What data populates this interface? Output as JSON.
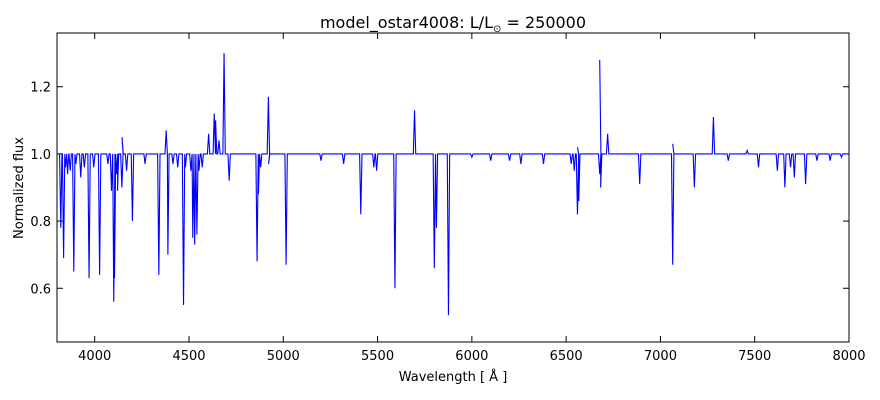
{
  "chart_data": {
    "type": "line",
    "title": "model_ostar4008: L/L",
    "title_subscript": "⊙",
    "title_suffix": " = 250000",
    "xlabel": "Wavelength [ Å ]",
    "ylabel": "Normalized flux",
    "xlim": [
      3800,
      8000
    ],
    "ylim": [
      0.44,
      1.36
    ],
    "xticks": [
      4000,
      4500,
      5000,
      5500,
      6000,
      6500,
      7000,
      7500,
      8000
    ],
    "yticks": [
      0.6,
      0.8,
      1.0,
      1.2
    ],
    "ytick_labels": [
      "0.6",
      "0.8",
      "1.0",
      "1.2"
    ],
    "grid": false,
    "series": [
      {
        "color": "#0000ff",
        "continuum": 1.0,
        "absorption_lines": [
          {
            "x": 3820,
            "y": 0.78
          },
          {
            "x": 3835,
            "y": 0.69
          },
          {
            "x": 3845,
            "y": 0.96
          },
          {
            "x": 3856,
            "y": 0.94
          },
          {
            "x": 3870,
            "y": 0.95
          },
          {
            "x": 3889,
            "y": 0.65
          },
          {
            "x": 3900,
            "y": 0.97
          },
          {
            "x": 3926,
            "y": 0.93
          },
          {
            "x": 3945,
            "y": 0.96
          },
          {
            "x": 3970,
            "y": 0.63
          },
          {
            "x": 3995,
            "y": 0.96
          },
          {
            "x": 4026,
            "y": 0.64
          },
          {
            "x": 4070,
            "y": 0.97
          },
          {
            "x": 4089,
            "y": 0.89
          },
          {
            "x": 4101,
            "y": 0.56
          },
          {
            "x": 4105,
            "y": 0.63
          },
          {
            "x": 4116,
            "y": 0.94
          },
          {
            "x": 4121,
            "y": 0.89
          },
          {
            "x": 4144,
            "y": 0.9
          },
          {
            "x": 4169,
            "y": 0.95
          },
          {
            "x": 4200,
            "y": 0.8
          },
          {
            "x": 4267,
            "y": 0.97
          },
          {
            "x": 4340,
            "y": 0.64
          },
          {
            "x": 4388,
            "y": 0.7
          },
          {
            "x": 4415,
            "y": 0.97
          },
          {
            "x": 4440,
            "y": 0.96
          },
          {
            "x": 4471,
            "y": 0.55
          },
          {
            "x": 4481,
            "y": 0.96
          },
          {
            "x": 4510,
            "y": 0.95
          },
          {
            "x": 4520,
            "y": 0.75
          },
          {
            "x": 4530,
            "y": 0.73
          },
          {
            "x": 4542,
            "y": 0.76
          },
          {
            "x": 4553,
            "y": 0.95
          },
          {
            "x": 4570,
            "y": 0.96
          },
          {
            "x": 4713,
            "y": 0.92
          },
          {
            "x": 4861,
            "y": 0.68
          },
          {
            "x": 4868,
            "y": 0.88
          },
          {
            "x": 4880,
            "y": 0.96
          },
          {
            "x": 4922,
            "y": 0.97
          },
          {
            "x": 5015,
            "y": 0.67
          },
          {
            "x": 5200,
            "y": 0.98
          },
          {
            "x": 5320,
            "y": 0.97
          },
          {
            "x": 5411,
            "y": 0.82
          },
          {
            "x": 5480,
            "y": 0.96
          },
          {
            "x": 5495,
            "y": 0.95
          },
          {
            "x": 5592,
            "y": 0.6
          },
          {
            "x": 5801,
            "y": 0.66
          },
          {
            "x": 5812,
            "y": 0.78
          },
          {
            "x": 5876,
            "y": 0.52
          },
          {
            "x": 6000,
            "y": 0.99
          },
          {
            "x": 6100,
            "y": 0.98
          },
          {
            "x": 6200,
            "y": 0.98
          },
          {
            "x": 6260,
            "y": 0.97
          },
          {
            "x": 6380,
            "y": 0.97
          },
          {
            "x": 6527,
            "y": 0.97
          },
          {
            "x": 6543,
            "y": 0.95
          },
          {
            "x": 6560,
            "y": 0.82
          },
          {
            "x": 6567,
            "y": 0.86
          },
          {
            "x": 6678,
            "y": 0.94
          },
          {
            "x": 6683,
            "y": 0.9
          },
          {
            "x": 6890,
            "y": 0.91
          },
          {
            "x": 7065,
            "y": 0.67
          },
          {
            "x": 7180,
            "y": 0.9
          },
          {
            "x": 7360,
            "y": 0.98
          },
          {
            "x": 7520,
            "y": 0.96
          },
          {
            "x": 7620,
            "y": 0.95
          },
          {
            "x": 7660,
            "y": 0.9
          },
          {
            "x": 7690,
            "y": 0.96
          },
          {
            "x": 7710,
            "y": 0.93
          },
          {
            "x": 7770,
            "y": 0.91
          },
          {
            "x": 7830,
            "y": 0.98
          },
          {
            "x": 7900,
            "y": 0.98
          },
          {
            "x": 7960,
            "y": 0.99
          }
        ],
        "emission_lines": [
          {
            "x": 4145,
            "y": 1.05
          },
          {
            "x": 4379,
            "y": 1.07
          },
          {
            "x": 4604,
            "y": 1.06
          },
          {
            "x": 4634,
            "y": 1.12
          },
          {
            "x": 4641,
            "y": 1.1
          },
          {
            "x": 4659,
            "y": 1.04
          },
          {
            "x": 4686,
            "y": 1.3
          },
          {
            "x": 4921,
            "y": 1.17
          },
          {
            "x": 5696,
            "y": 1.13
          },
          {
            "x": 6560,
            "y": 1.02
          },
          {
            "x": 6678,
            "y": 1.28
          },
          {
            "x": 6720,
            "y": 1.06
          },
          {
            "x": 7065,
            "y": 1.03
          },
          {
            "x": 7281,
            "y": 1.11
          },
          {
            "x": 7460,
            "y": 1.01
          }
        ]
      }
    ]
  }
}
